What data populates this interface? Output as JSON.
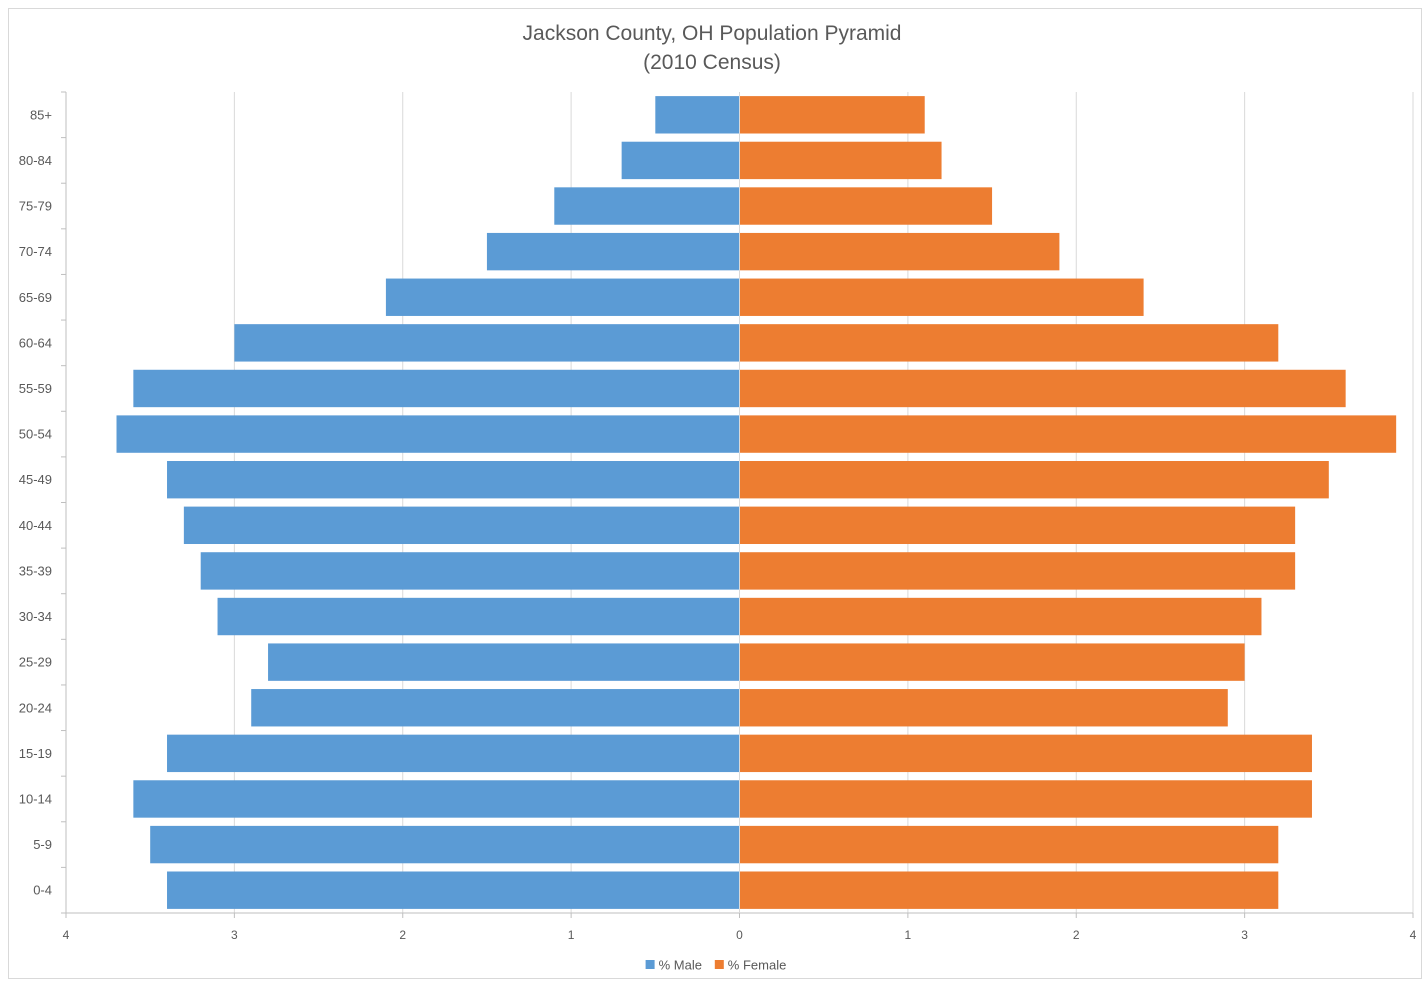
{
  "chart_data": {
    "type": "bar",
    "orientation": "horizontal",
    "title": "Jackson County, OH Population Pyramid",
    "subtitle": "(2010 Census)",
    "categories": [
      "0-4",
      "5-9",
      "10-14",
      "15-19",
      "20-24",
      "25-29",
      "30-34",
      "35-39",
      "40-44",
      "45-49",
      "50-54",
      "55-59",
      "60-64",
      "65-69",
      "70-74",
      "75-79",
      "80-84",
      "85+"
    ],
    "series": [
      {
        "name": "% Male",
        "color": "#5b9bd5",
        "side": "left",
        "values": [
          3.4,
          3.5,
          3.6,
          3.4,
          2.9,
          2.8,
          3.1,
          3.2,
          3.3,
          3.4,
          3.7,
          3.6,
          3.0,
          2.1,
          1.5,
          1.1,
          0.7,
          0.5
        ]
      },
      {
        "name": "% Female",
        "color": "#ed7d31",
        "side": "right",
        "values": [
          3.2,
          3.2,
          3.4,
          3.4,
          2.9,
          3.0,
          3.1,
          3.3,
          3.3,
          3.5,
          3.9,
          3.6,
          3.2,
          2.4,
          1.9,
          1.5,
          1.2,
          1.1
        ]
      }
    ],
    "xlim": [
      -4,
      4
    ],
    "xticks": [
      -4,
      -3,
      -2,
      -1,
      0,
      1,
      2,
      3,
      4
    ],
    "xtick_labels": [
      "4",
      "3",
      "2",
      "1",
      "0",
      "1",
      "2",
      "3",
      "4"
    ],
    "grid": true,
    "legend": "bottom-center"
  }
}
